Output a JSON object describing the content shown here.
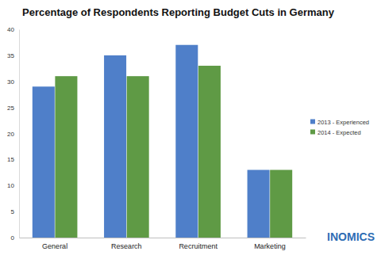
{
  "chart_data": {
    "type": "bar",
    "title": "Percentage of Respondents Reporting Budget Cuts in Germany",
    "categories": [
      "General",
      "Research",
      "Recruitment",
      "Marketing"
    ],
    "series": [
      {
        "name": "2013 - Experienced",
        "color": "#4f7fc9",
        "values": [
          29,
          35,
          37,
          13
        ]
      },
      {
        "name": "2014 - Expected",
        "color": "#5f9a45",
        "values": [
          31,
          31,
          33,
          13
        ]
      }
    ],
    "ylim": [
      0,
      40
    ],
    "yticks": [
      0,
      5,
      10,
      15,
      20,
      25,
      30,
      35,
      40
    ],
    "grid": false,
    "legend": "right",
    "annotations": [
      "INOMICS"
    ]
  }
}
